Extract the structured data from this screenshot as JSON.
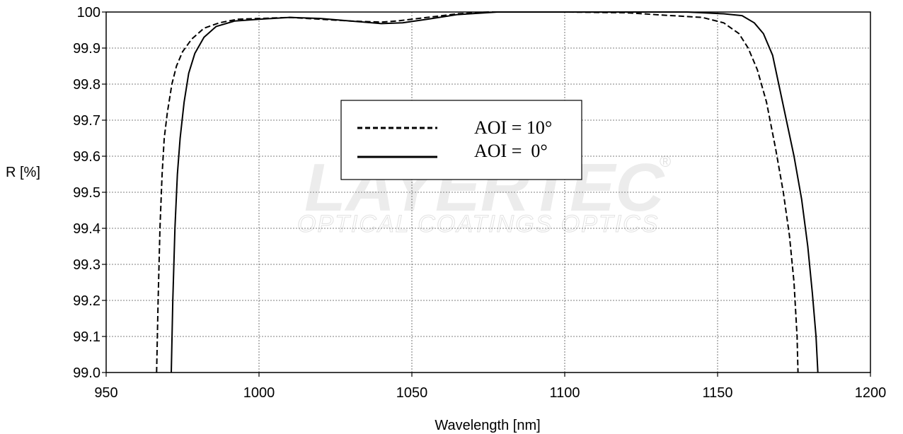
{
  "chart_data": {
    "type": "line",
    "title": "",
    "xlabel": "Wavelength [nm]",
    "ylabel": "R [%]",
    "xlim": [
      950,
      1200
    ],
    "ylim": [
      99.0,
      100.0
    ],
    "xticks": [
      950,
      1000,
      1050,
      1100,
      1150,
      1200
    ],
    "yticks": [
      "99.0",
      "99.1",
      "99.2",
      "99.3",
      "99.4",
      "99.5",
      "99.6",
      "99.7",
      "99.8",
      "99.9",
      "100"
    ],
    "grid": true,
    "legend_position": "center-left",
    "watermark": {
      "logo": "LAYERTEC",
      "subtitle": "OPTICAL COATINGS OPTICS",
      "registered": "®"
    },
    "series": [
      {
        "name": "AOI = 10°",
        "style": "dashed",
        "color": "#000000",
        "points": [
          [
            966.5,
            99.0
          ],
          [
            967.0,
            99.2
          ],
          [
            967.6,
            99.4
          ],
          [
            968.3,
            99.55
          ],
          [
            969.0,
            99.65
          ],
          [
            970.0,
            99.72
          ],
          [
            971.5,
            99.8
          ],
          [
            973.0,
            99.85
          ],
          [
            975.0,
            99.89
          ],
          [
            978.0,
            99.925
          ],
          [
            982.0,
            99.955
          ],
          [
            987.0,
            99.97
          ],
          [
            993.0,
            99.98
          ],
          [
            1000.0,
            99.982
          ],
          [
            1010.0,
            99.985
          ],
          [
            1020.0,
            99.98
          ],
          [
            1030.0,
            99.975
          ],
          [
            1040.0,
            99.972
          ],
          [
            1045.0,
            99.975
          ],
          [
            1055.0,
            99.985
          ],
          [
            1065.0,
            99.995
          ],
          [
            1075.0,
            100.0
          ],
          [
            1100.0,
            100.0
          ],
          [
            1120.0,
            99.998
          ],
          [
            1135.0,
            99.99
          ],
          [
            1145.0,
            99.985
          ],
          [
            1152.0,
            99.97
          ],
          [
            1157.0,
            99.94
          ],
          [
            1160.0,
            99.9
          ],
          [
            1163.0,
            99.84
          ],
          [
            1166.0,
            99.75
          ],
          [
            1169.0,
            99.62
          ],
          [
            1171.5,
            99.5
          ],
          [
            1173.5,
            99.38
          ],
          [
            1175.0,
            99.25
          ],
          [
            1176.0,
            99.1
          ],
          [
            1176.3,
            99.0
          ]
        ]
      },
      {
        "name": "AOI =  0°",
        "style": "solid",
        "color": "#000000",
        "points": [
          [
            971.3,
            99.0
          ],
          [
            971.8,
            99.2
          ],
          [
            972.5,
            99.4
          ],
          [
            973.3,
            99.55
          ],
          [
            974.2,
            99.65
          ],
          [
            975.5,
            99.75
          ],
          [
            977.0,
            99.83
          ],
          [
            979.0,
            99.885
          ],
          [
            982.0,
            99.93
          ],
          [
            986.0,
            99.96
          ],
          [
            992.0,
            99.975
          ],
          [
            1000.0,
            99.98
          ],
          [
            1010.0,
            99.985
          ],
          [
            1020.0,
            99.982
          ],
          [
            1030.0,
            99.975
          ],
          [
            1040.0,
            99.968
          ],
          [
            1047.0,
            99.97
          ],
          [
            1055.0,
            99.98
          ],
          [
            1065.0,
            99.993
          ],
          [
            1078.0,
            100.0
          ],
          [
            1140.0,
            100.0
          ],
          [
            1152.0,
            99.995
          ],
          [
            1158.0,
            99.99
          ],
          [
            1162.0,
            99.97
          ],
          [
            1165.0,
            99.94
          ],
          [
            1168.0,
            99.88
          ],
          [
            1170.0,
            99.8
          ],
          [
            1172.5,
            99.7
          ],
          [
            1175.0,
            99.6
          ],
          [
            1177.5,
            99.48
          ],
          [
            1179.5,
            99.35
          ],
          [
            1181.0,
            99.22
          ],
          [
            1182.2,
            99.1
          ],
          [
            1182.8,
            99.0
          ]
        ]
      }
    ]
  }
}
